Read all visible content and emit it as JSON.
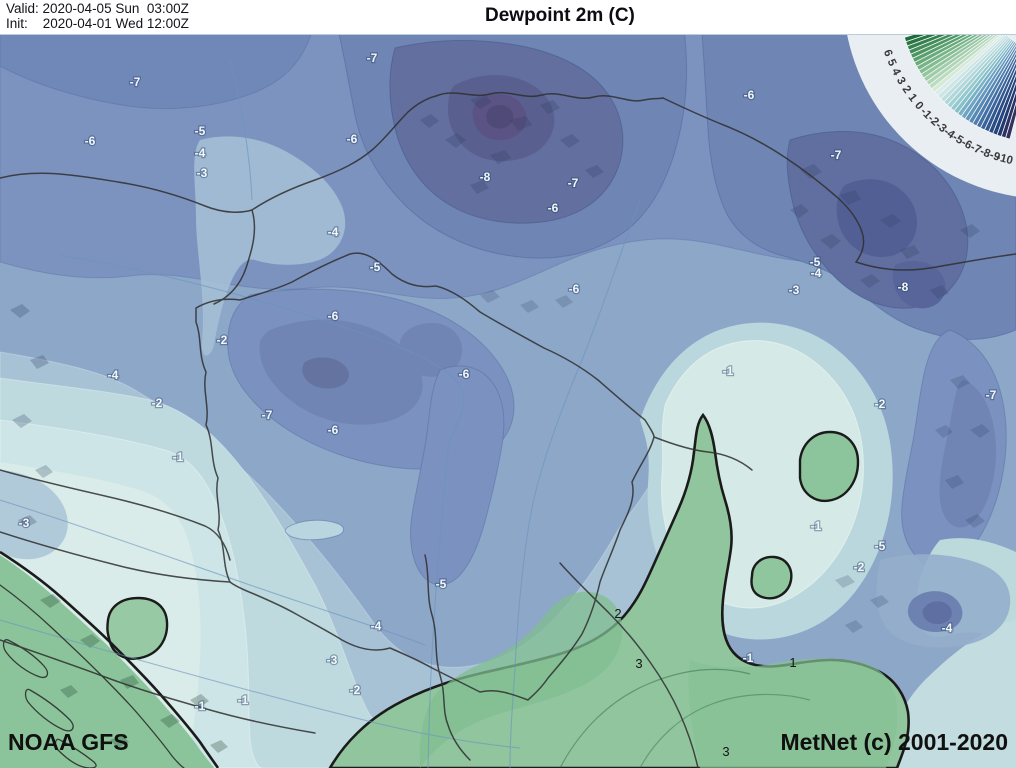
{
  "header": {
    "valid_label": "Valid: 2020-04-05 Sun  03:00Z",
    "init_label": "Init:    2020-04-01 Wed 12:00Z",
    "title": "Dewpoint 2m (C)"
  },
  "footer": {
    "model_label": "NOAA GFS",
    "copyright_label": "MetNet (c) 2001-2020"
  },
  "legend": {
    "unit": "C",
    "step": 0.5,
    "label_values": [
      6,
      5,
      4,
      3,
      2,
      1,
      0,
      -1,
      -2,
      -3,
      -4,
      -5,
      -6,
      -7,
      -8,
      -9,
      -10
    ],
    "palette_top_value": 7.0,
    "palette": [
      "#1f6b38",
      "#2a7643",
      "#35814d",
      "#418c58",
      "#4d9662",
      "#5aa06e",
      "#68aa79",
      "#76b385",
      "#84bc91",
      "#92c49d",
      "#a0cca9",
      "#aed4b4",
      "#bcdcc0",
      "#d5ead5",
      "#daecea",
      "#cce5e5",
      "#bedee0",
      "#b0d7da",
      "#a2d0d5",
      "#94c8cf",
      "#86c0c9",
      "#78b1c6",
      "#6da3c4",
      "#6296bd",
      "#5789b5",
      "#4d7cad",
      "#4370a4",
      "#3a649b",
      "#325891",
      "#2b4d87",
      "#25437c",
      "#213a6f",
      "#2d3263",
      "#35305f"
    ],
    "ring_color": "#e9eef3",
    "separator_color": "#f2f6f7"
  },
  "map": {
    "field_name": "Dewpoint 2m",
    "key_colors": {
      "deep_cold": "#595f8f",
      "cold_blue": "#6f85b4",
      "mid_blue": "#8ca7c8",
      "pale_cyan": "#d7ebe8",
      "positive_green": "#90c59e",
      "border": "#2f2f2f",
      "zero_contour": "#1b1b1b"
    },
    "contour_labels": [
      [
        "-7",
        135,
        82,
        "w"
      ],
      [
        "-5",
        200,
        131,
        "w"
      ],
      [
        "-6",
        90,
        141,
        "w"
      ],
      [
        "-4",
        200,
        153,
        "w"
      ],
      [
        "-3",
        202,
        173,
        "w"
      ],
      [
        "-7",
        372,
        58,
        "w"
      ],
      [
        "-6",
        352,
        139,
        "w"
      ],
      [
        "-4",
        333,
        232,
        "w"
      ],
      [
        "-8",
        485,
        177,
        "w"
      ],
      [
        "-7",
        573,
        183,
        "w"
      ],
      [
        "-6",
        553,
        208,
        "w"
      ],
      [
        "-5",
        375,
        267,
        "w"
      ],
      [
        "-6",
        574,
        289,
        "w"
      ],
      [
        "-6",
        749,
        95,
        "w"
      ],
      [
        "-7",
        836,
        155,
        "w"
      ],
      [
        "-5",
        815,
        262,
        "w"
      ],
      [
        "-4",
        816,
        273,
        "w"
      ],
      [
        "-3",
        794,
        290,
        "w"
      ],
      [
        "-8",
        903,
        287,
        "w"
      ],
      [
        "-6",
        333,
        316,
        "w"
      ],
      [
        "-2",
        222,
        340,
        "w"
      ],
      [
        "-7",
        267,
        415,
        "w"
      ],
      [
        "-6",
        333,
        430,
        "w"
      ],
      [
        "-6",
        464,
        374,
        "w"
      ],
      [
        "-4",
        113,
        375,
        "w"
      ],
      [
        "-2",
        157,
        403,
        "w"
      ],
      [
        "-1",
        178,
        457,
        "w"
      ],
      [
        "-3",
        24,
        523,
        "w"
      ],
      [
        "-1",
        200,
        706,
        "w"
      ],
      [
        "-1",
        243,
        700,
        "w"
      ],
      [
        "-5",
        441,
        584,
        "w"
      ],
      [
        "-4",
        376,
        626,
        "w"
      ],
      [
        "-3",
        332,
        660,
        "w"
      ],
      [
        "-2",
        355,
        690,
        "w"
      ],
      [
        "-1",
        728,
        371,
        "w"
      ],
      [
        "-2",
        880,
        404,
        "w"
      ],
      [
        "-7",
        991,
        395,
        "w"
      ],
      [
        "-1",
        816,
        526,
        "w"
      ],
      [
        "-5",
        880,
        546,
        "w"
      ],
      [
        "-2",
        859,
        567,
        "w"
      ],
      [
        "-4",
        947,
        628,
        "w"
      ],
      [
        "-1",
        748,
        658,
        "w"
      ],
      [
        "2",
        618,
        614,
        "b"
      ],
      [
        "3",
        639,
        664,
        "b"
      ],
      [
        "1",
        793,
        663,
        "b"
      ],
      [
        "3",
        726,
        752,
        "b"
      ]
    ]
  }
}
